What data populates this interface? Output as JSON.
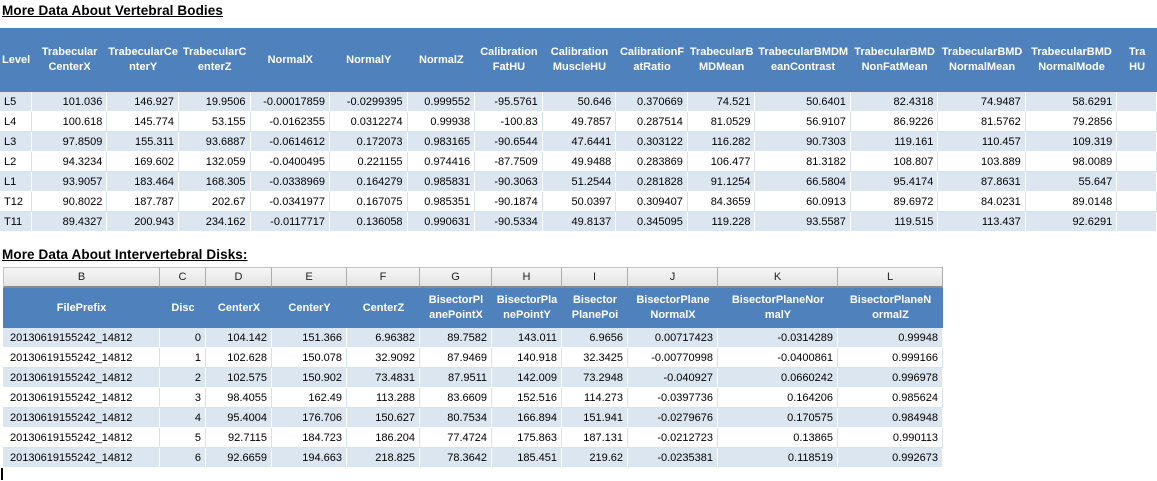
{
  "titles": {
    "vertebral": "More Data About Vertebral Bodies",
    "disks": "More Data About Intervertebral Disks:"
  },
  "colors": {
    "header_blue": "#4f81bd",
    "band_blue": "#dce6f1",
    "letter_strip_gray": "#ececec"
  },
  "vertebral_table": {
    "columns": [
      "Level",
      "Trabecular\nCenterX",
      "TrabecularCe\nnterY",
      "TrabecularC\nenterZ",
      "NormalX",
      "NormalY",
      "NormalZ",
      "Calibration\nFatHU",
      "Calibration\nMuscleHU",
      "CalibrationF\natRatio",
      "TrabecularB\nMDMean",
      "TrabecularBMDM\neanContrast",
      "TrabecularBMD\nNonFatMean",
      "TrabecularBMD\nNormalMean",
      "TrabecularBMD\nNormalMode",
      "Tra\nHU"
    ],
    "rows": [
      [
        "L5",
        "101.036",
        "146.927",
        "19.9506",
        "-0.00017859",
        "-0.0299395",
        "0.999552",
        "-95.5761",
        "50.646",
        "0.370669",
        "74.521",
        "50.6401",
        "82.4318",
        "74.9487",
        "58.6291",
        ""
      ],
      [
        "L4",
        "100.618",
        "145.774",
        "53.155",
        "-0.0162355",
        "0.0312274",
        "0.99938",
        "-100.83",
        "49.7857",
        "0.287514",
        "81.0529",
        "56.9107",
        "86.9226",
        "81.5762",
        "79.2856",
        ""
      ],
      [
        "L3",
        "97.8509",
        "155.311",
        "93.6887",
        "-0.0614612",
        "0.172073",
        "0.983165",
        "-90.6544",
        "47.6441",
        "0.303122",
        "116.282",
        "90.7303",
        "119.161",
        "110.457",
        "109.319",
        ""
      ],
      [
        "L2",
        "94.3234",
        "169.602",
        "132.059",
        "-0.0400495",
        "0.221155",
        "0.974416",
        "-87.7509",
        "49.9488",
        "0.283869",
        "106.477",
        "81.3182",
        "108.807",
        "103.889",
        "98.0089",
        ""
      ],
      [
        "L1",
        "93.9057",
        "183.464",
        "168.305",
        "-0.0338969",
        "0.164279",
        "0.985831",
        "-90.3063",
        "51.2544",
        "0.281828",
        "91.1254",
        "66.5804",
        "95.4174",
        "87.8631",
        "55.647",
        ""
      ],
      [
        "T12",
        "90.8022",
        "187.787",
        "202.67",
        "-0.0341977",
        "0.167075",
        "0.985351",
        "-90.1874",
        "50.0397",
        "0.309407",
        "84.3659",
        "60.0913",
        "89.6972",
        "84.0231",
        "89.0148",
        ""
      ],
      [
        "T11",
        "89.4327",
        "200.943",
        "234.162",
        "-0.0117717",
        "0.136058",
        "0.990631",
        "-90.5334",
        "49.8137",
        "0.345095",
        "119.228",
        "93.5587",
        "119.515",
        "113.437",
        "92.6291",
        ""
      ]
    ]
  },
  "disk_table": {
    "letters": [
      "B",
      "C",
      "D",
      "E",
      "F",
      "G",
      "H",
      "I",
      "J",
      "K",
      "L"
    ],
    "columns": [
      "FilePrefix",
      "Disc",
      "CenterX",
      "CenterY",
      "CenterZ",
      "BisectorPl\nanePointX",
      "BisectorPla\nnePointY",
      "Bisector\nPlanePoi",
      "BisectorPlane\nNormalX",
      "BisectorPlaneNor\nmalY",
      "BisectorPlaneN\normalZ"
    ],
    "rows": [
      [
        "20130619155242_14812",
        "0",
        "104.142",
        "151.366",
        "6.96382",
        "89.7582",
        "143.011",
        "6.9656",
        "0.00717423",
        "-0.0314289",
        "0.99948"
      ],
      [
        "20130619155242_14812",
        "1",
        "102.628",
        "150.078",
        "32.9092",
        "87.9469",
        "140.918",
        "32.3425",
        "-0.00770998",
        "-0.0400861",
        "0.999166"
      ],
      [
        "20130619155242_14812",
        "2",
        "102.575",
        "150.902",
        "73.4831",
        "87.9511",
        "142.009",
        "73.2948",
        "-0.040927",
        "0.0660242",
        "0.996978"
      ],
      [
        "20130619155242_14812",
        "3",
        "98.4055",
        "162.49",
        "113.288",
        "83.6609",
        "152.516",
        "114.273",
        "-0.0397736",
        "0.164206",
        "0.985624"
      ],
      [
        "20130619155242_14812",
        "4",
        "95.4004",
        "176.706",
        "150.627",
        "80.7534",
        "166.894",
        "151.941",
        "-0.0279676",
        "0.170575",
        "0.984948"
      ],
      [
        "20130619155242_14812",
        "5",
        "92.7115",
        "184.723",
        "186.204",
        "77.4724",
        "175.863",
        "187.131",
        "-0.0212723",
        "0.13865",
        "0.990113"
      ],
      [
        "20130619155242_14812",
        "6",
        "92.6659",
        "194.663",
        "218.825",
        "78.3642",
        "185.451",
        "219.62",
        "-0.0235381",
        "0.118519",
        "0.992673"
      ]
    ]
  }
}
